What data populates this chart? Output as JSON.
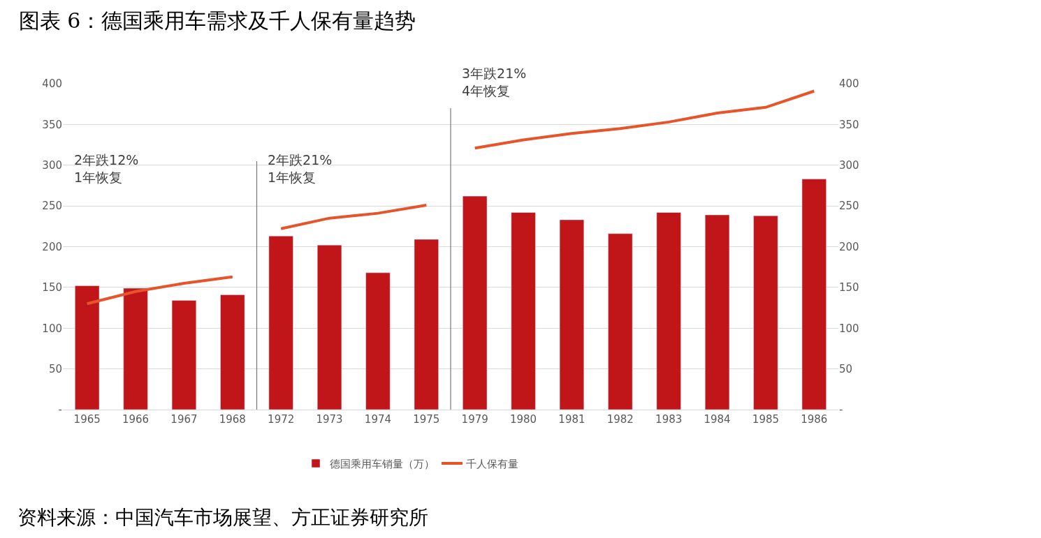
{
  "chart_data": {
    "type": "bar",
    "title": "图表 6：德国乘用车需求及千人保有量趋势",
    "categories": [
      "1965",
      "1966",
      "1967",
      "1968",
      "1972",
      "1973",
      "1974",
      "1975",
      "1979",
      "1980",
      "1981",
      "1982",
      "1983",
      "1984",
      "1985",
      "1986"
    ],
    "series": [
      {
        "name": "德国乘用车销量（万）",
        "color": "#c0161a",
        "values": [
          152,
          149,
          134,
          141,
          213,
          202,
          168,
          209,
          262,
          242,
          233,
          216,
          242,
          239,
          238,
          283
        ]
      },
      {
        "name": "千人保有量",
        "type": "line",
        "axis": "y2",
        "color": "#e8542a",
        "values": [
          130,
          145,
          155,
          163,
          null,
          null,
          null,
          null,
          null,
          null,
          null,
          null,
          null,
          null,
          null,
          null
        ]
      },
      {
        "type": "line",
        "axis": "y2",
        "color": "#e8542a",
        "values": [
          null,
          null,
          null,
          null,
          222,
          235,
          241,
          251,
          null,
          null,
          null,
          null,
          null,
          null,
          null,
          null
        ]
      },
      {
        "type": "line",
        "axis": "y2",
        "color": "#e8542a",
        "values": [
          null,
          null,
          null,
          null,
          null,
          null,
          null,
          null,
          321,
          331,
          339,
          345,
          353,
          364,
          371,
          391
        ]
      }
    ],
    "ylim": [
      0,
      400
    ],
    "yticks": [
      {
        "value": 0,
        "label": "-"
      },
      50,
      100,
      150,
      200,
      250,
      300,
      350,
      400
    ],
    "y2lim": [
      0,
      400
    ],
    "y2ticks": [
      {
        "value": 0,
        "label": "-"
      },
      50,
      100,
      150,
      200,
      250,
      300,
      350,
      400
    ],
    "annotations": [
      "2年跌12%\n1年恢复",
      "2年跌21%\n1年恢复",
      "3年跌21%\n4年恢复",
      "资料来源：中国汽车市场展望、方正证券研究所"
    ],
    "grid": "y",
    "legend": "bottom",
    "line_style": "solid",
    "marker": "none"
  }
}
